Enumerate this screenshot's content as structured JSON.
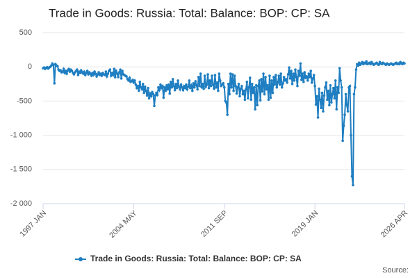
{
  "chart_data": {
    "type": "line",
    "title": "Trade in Goods: Russia: Total: Balance: BOP: CP: SA",
    "source": "Source:",
    "categories": [
      "1997 JAN",
      null,
      null,
      null,
      null,
      null,
      null,
      null,
      null,
      null,
      null,
      null,
      null,
      null,
      null,
      null,
      null,
      null,
      null,
      null,
      null,
      null,
      null,
      null,
      null,
      null,
      null,
      null,
      null,
      null,
      null,
      null,
      null,
      null,
      null,
      null,
      null,
      null,
      null,
      null,
      null,
      null,
      null,
      null,
      null,
      null,
      null,
      null,
      null,
      null,
      null,
      null,
      null,
      null,
      null,
      null,
      null,
      null,
      null,
      null,
      null,
      null,
      null,
      null,
      null,
      null,
      null,
      null,
      null,
      null,
      null,
      null,
      null,
      null,
      null,
      null,
      null,
      null,
      null,
      null,
      null,
      null,
      null,
      null,
      null,
      null,
      null,
      null,
      "2004 MAY",
      null,
      null,
      null,
      null,
      null,
      null,
      null,
      null,
      null,
      null,
      null,
      null,
      null,
      null,
      null,
      null,
      null,
      null,
      null,
      null,
      null,
      null,
      null,
      null,
      null,
      null,
      null,
      null,
      null,
      null,
      null,
      null,
      null,
      null,
      null,
      null,
      null,
      null,
      null,
      null,
      null,
      null,
      null,
      null,
      null,
      null,
      null,
      null,
      null,
      null,
      null,
      null,
      null,
      null,
      null,
      null,
      null,
      null,
      null,
      null,
      null,
      null,
      null,
      null,
      null,
      null,
      null,
      null,
      null,
      null,
      null,
      null,
      null,
      null,
      null,
      null,
      null,
      null,
      null,
      null,
      null,
      null,
      null,
      null,
      null,
      null,
      null,
      "2011 SEP",
      null,
      null,
      null,
      null,
      null,
      null,
      null,
      null,
      null,
      null,
      null,
      null,
      null,
      null,
      null,
      null,
      null,
      null,
      null,
      null,
      null,
      null,
      null,
      null,
      null,
      null,
      null,
      null,
      null,
      null,
      null,
      null,
      null,
      null,
      null,
      null,
      null,
      null,
      null,
      null,
      null,
      null,
      null,
      null,
      null,
      null,
      null,
      null,
      null,
      null,
      null,
      null,
      null,
      null,
      null,
      null,
      null,
      null,
      null,
      null,
      null,
      null,
      null,
      null,
      null,
      null,
      null,
      null,
      null,
      null,
      null,
      null,
      null,
      null,
      null,
      null,
      null,
      null,
      null,
      null,
      null,
      null,
      null,
      null,
      null,
      null,
      null,
      "2019 JAN",
      null,
      null,
      null,
      null,
      null,
      null,
      null,
      null,
      null,
      null,
      null,
      null,
      null,
      null,
      null,
      null,
      null,
      null,
      null,
      null,
      null,
      null,
      null,
      null,
      null,
      null,
      null,
      null,
      null,
      null,
      null,
      null,
      null,
      null,
      null,
      null,
      null,
      null,
      null,
      null,
      null,
      null,
      null,
      null,
      null,
      null,
      null,
      null,
      null,
      null,
      null,
      null,
      null,
      null,
      null,
      null,
      null,
      null,
      null,
      null,
      null,
      null,
      null,
      null,
      null,
      null,
      null,
      null,
      null,
      null,
      null,
      null,
      null,
      null,
      null,
      null,
      null,
      null,
      null,
      null,
      null,
      null,
      null,
      null,
      null,
      null,
      "2026 APR"
    ],
    "series": [
      {
        "name": "Trade in Goods: Russia: Total: Balance: BOP: CP: SA",
        "color": "#1f7ec1",
        "values": [
          -20,
          -10,
          -30,
          -15,
          -5,
          -25,
          -10,
          0,
          20,
          50,
          30,
          -240,
          40,
          20,
          10,
          -40,
          -60,
          -50,
          -80,
          -70,
          -30,
          -90,
          -60,
          -100,
          -50,
          -30,
          -70,
          -40,
          -60,
          -90,
          -110,
          -80,
          -60,
          -40,
          -120,
          -70,
          -90,
          -50,
          -80,
          -100,
          -70,
          -120,
          -90,
          -60,
          -110,
          -80,
          -100,
          -130,
          -90,
          -120,
          -70,
          -100,
          -140,
          -110,
          -80,
          -120,
          -100,
          -130,
          -90,
          -110,
          -120,
          -70,
          -140,
          -100,
          -60,
          -40,
          -130,
          -90,
          -120,
          -30,
          -150,
          -60,
          -100,
          -150,
          -80,
          -40,
          -170,
          -60,
          -110,
          -120,
          -130,
          -140,
          -180,
          -200,
          -160,
          -220,
          -210,
          -190,
          -230,
          -200,
          -260,
          -310,
          -280,
          -350,
          -220,
          -300,
          -330,
          -250,
          -380,
          -290,
          -350,
          -420,
          -310,
          -460,
          -390,
          -430,
          -370,
          -400,
          -570,
          -420,
          -380,
          -410,
          -300,
          -340,
          -260,
          -310,
          -280,
          -450,
          -300,
          -350,
          -270,
          -330,
          -260,
          -390,
          -220,
          -300,
          -180,
          -280,
          -340,
          -250,
          -310,
          -200,
          -290,
          -330,
          -260,
          -300,
          -340,
          -280,
          -310,
          -260,
          -330,
          -290,
          -200,
          -310,
          -270,
          -350,
          -240,
          -300,
          -210,
          -270,
          -330,
          -150,
          -280,
          -100,
          -300,
          -250,
          -320,
          -130,
          -290,
          -260,
          -110,
          -310,
          -200,
          -280,
          -130,
          -260,
          -320,
          -120,
          -300,
          -230,
          -350,
          -100,
          -200,
          -280,
          -260,
          -240,
          -300,
          -500,
          -520,
          -700,
          -250,
          -400,
          -100,
          -300,
          -110,
          -350,
          -130,
          -280,
          -390,
          -300,
          -250,
          -430,
          -320,
          -280,
          -400,
          -350,
          -480,
          -330,
          -220,
          -460,
          -300,
          -160,
          -480,
          -250,
          -380,
          -300,
          -620,
          -270,
          -560,
          -280,
          -200,
          -490,
          -180,
          -360,
          -100,
          -400,
          -150,
          -330,
          -270,
          -480,
          -130,
          -450,
          -200,
          -380,
          -150,
          -260,
          -120,
          -300,
          -230,
          -130,
          -260,
          -100,
          -300,
          -240,
          -150,
          -200,
          -180,
          -230,
          -110,
          -10,
          -170,
          -60,
          -250,
          -100,
          -200,
          -40,
          -150,
          -280,
          -60,
          -130,
          50,
          -190,
          -100,
          -220,
          -80,
          -160,
          -140,
          -200,
          -100,
          -150,
          -60,
          -230,
          -170,
          -120,
          -280,
          -550,
          -430,
          -740,
          -320,
          -480,
          -600,
          -380,
          -650,
          -420,
          -300,
          -230,
          -480,
          -350,
          -560,
          -270,
          -520,
          -400,
          -310,
          -460,
          -200,
          -620,
          -300,
          -380,
          -20,
          -200,
          -300,
          -1080,
          -860,
          -700,
          -400,
          -560,
          -650,
          -300,
          -280,
          -1000,
          -1600,
          -1730,
          -400,
          -300,
          -40,
          40,
          20,
          60,
          30,
          50,
          70,
          40,
          60,
          50,
          80,
          40,
          50,
          60,
          40,
          70,
          50,
          30,
          40,
          50,
          60,
          40,
          30,
          70,
          50,
          40,
          60,
          50,
          40,
          30,
          50,
          40,
          30,
          40,
          50,
          40,
          30,
          40,
          50,
          60,
          40,
          50,
          40,
          70,
          50,
          40,
          60,
          50
        ]
      }
    ],
    "ylim": [
      -2000,
      500
    ],
    "yticks": [
      {
        "value": -2000,
        "label": "-2 000"
      },
      {
        "value": -1500,
        "label": "-1 500"
      },
      {
        "value": -1000,
        "label": "-1 000"
      },
      -500,
      0,
      500
    ],
    "grid": true,
    "legend": "bottom"
  }
}
